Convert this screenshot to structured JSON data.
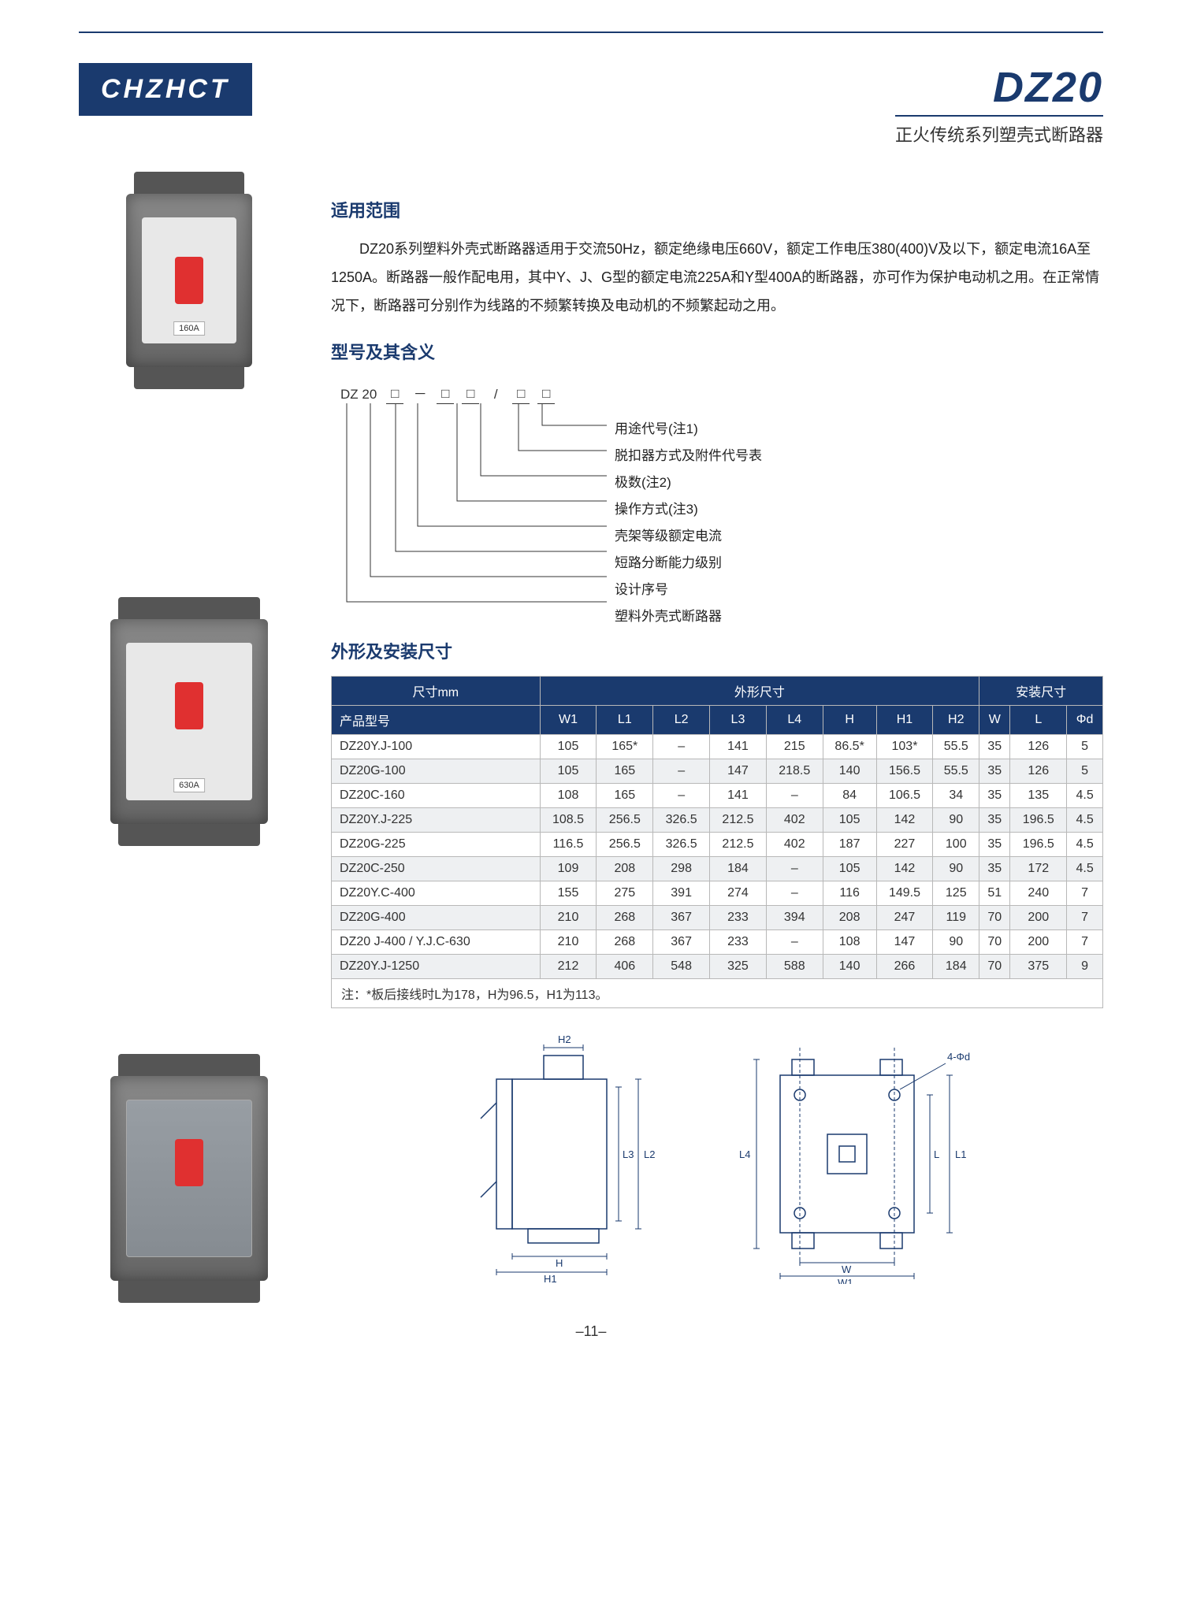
{
  "header": {
    "logo": "CHZHCT",
    "product_code": "DZ20",
    "subtitle": "正火传统系列塑壳式断路器"
  },
  "sections": {
    "scope_h": "适用范围",
    "scope_text": "DZ20系列塑料外壳式断路器适用于交流50Hz，额定绝缘电压660V，额定工作电压380(400)V及以下，额定电流16A至1250A。断路器一般作配电用，其中Y、J、G型的额定电流225A和Y型400A的断路器，亦可作为保护电动机之用。在正常情况下，断路器可分别作为线路的不频繁转换及电动机的不频繁起动之用。",
    "model_h": "型号及其含义",
    "dim_h": "外形及安装尺寸"
  },
  "model": {
    "prefix": "DZ 20",
    "slots": [
      "□",
      "－",
      "□",
      "□",
      "/",
      "□",
      "□"
    ],
    "labels": [
      "用途代号(注1)",
      "脱扣器方式及附件代号表",
      "极数(注2)",
      "操作方式(注3)",
      "壳架等级额定电流",
      "短路分断能力级别",
      "设计序号",
      "塑料外壳式断路器"
    ]
  },
  "table": {
    "group_headers": {
      "dim": "尺寸mm",
      "shape": "外形尺寸",
      "mount": "安装尺寸"
    },
    "col_headers": [
      "产品型号",
      "W1",
      "L1",
      "L2",
      "L3",
      "L4",
      "H",
      "H1",
      "H2",
      "W",
      "L",
      "Φd"
    ],
    "rows": [
      [
        "DZ20Y.J-100",
        "105",
        "165*",
        "–",
        "141",
        "215",
        "86.5*",
        "103*",
        "55.5",
        "35",
        "126",
        "5"
      ],
      [
        "DZ20G-100",
        "105",
        "165",
        "–",
        "147",
        "218.5",
        "140",
        "156.5",
        "55.5",
        "35",
        "126",
        "5"
      ],
      [
        "DZ20C-160",
        "108",
        "165",
        "–",
        "141",
        "–",
        "84",
        "106.5",
        "34",
        "35",
        "135",
        "4.5"
      ],
      [
        "DZ20Y.J-225",
        "108.5",
        "256.5",
        "326.5",
        "212.5",
        "402",
        "105",
        "142",
        "90",
        "35",
        "196.5",
        "4.5"
      ],
      [
        "DZ20G-225",
        "116.5",
        "256.5",
        "326.5",
        "212.5",
        "402",
        "187",
        "227",
        "100",
        "35",
        "196.5",
        "4.5"
      ],
      [
        "DZ20C-250",
        "109",
        "208",
        "298",
        "184",
        "–",
        "105",
        "142",
        "90",
        "35",
        "172",
        "4.5"
      ],
      [
        "DZ20Y.C-400",
        "155",
        "275",
        "391",
        "274",
        "–",
        "116",
        "149.5",
        "125",
        "51",
        "240",
        "7"
      ],
      [
        "DZ20G-400",
        "210",
        "268",
        "367",
        "233",
        "394",
        "208",
        "247",
        "119",
        "70",
        "200",
        "7"
      ],
      [
        "DZ20 J-400 / Y.J.C-630",
        "210",
        "268",
        "367",
        "233",
        "–",
        "108",
        "147",
        "90",
        "70",
        "200",
        "7"
      ],
      [
        "DZ20Y.J-1250",
        "212",
        "406",
        "548",
        "325",
        "588",
        "140",
        "266",
        "184",
        "70",
        "375",
        "9"
      ]
    ],
    "note": "注：*板后接线时L为178，H为96.5，H1为113。"
  },
  "drawing_labels": {
    "H2": "H2",
    "L3": "L3",
    "L2": "L2",
    "H": "H",
    "H1": "H1",
    "L4": "L4",
    "W": "W",
    "W1": "W1",
    "L": "L",
    "L1": "L1",
    "Phi": "4-Φd"
  },
  "product_labels": {
    "p1": "160A",
    "p2": "630A"
  },
  "page_number": "–11–",
  "colors": {
    "brand": "#1a3a6e",
    "accent_red": "#e03030",
    "grid": "#b8b8b8",
    "row_alt": "#eef0f2"
  }
}
